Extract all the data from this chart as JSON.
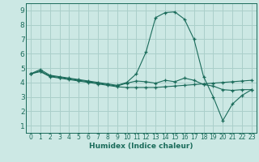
{
  "title": "",
  "xlabel": "Humidex (Indice chaleur)",
  "ylabel": "",
  "background_color": "#cce8e4",
  "grid_color": "#aacfca",
  "line_color": "#1a6b5a",
  "xlim": [
    -0.5,
    23.5
  ],
  "ylim": [
    0.5,
    9.5
  ],
  "xticks": [
    0,
    1,
    2,
    3,
    4,
    5,
    6,
    7,
    8,
    9,
    10,
    11,
    12,
    13,
    14,
    15,
    16,
    17,
    18,
    19,
    20,
    21,
    22,
    23
  ],
  "yticks": [
    1,
    2,
    3,
    4,
    5,
    6,
    7,
    8,
    9
  ],
  "curves": [
    {
      "x": [
        0,
        1,
        2,
        3,
        4,
        5,
        6,
        7,
        8,
        9,
        10,
        11,
        12,
        13,
        14,
        15,
        16,
        17,
        18,
        19,
        20,
        21,
        22,
        23
      ],
      "y": [
        4.6,
        4.9,
        4.5,
        4.4,
        4.3,
        4.2,
        4.1,
        4.0,
        3.9,
        3.8,
        4.0,
        4.6,
        6.1,
        8.5,
        8.85,
        8.9,
        8.4,
        7.0,
        4.4,
        3.0,
        1.35,
        2.5,
        3.1,
        3.5
      ]
    },
    {
      "x": [
        0,
        1,
        2,
        3,
        4,
        5,
        6,
        7,
        8,
        9,
        10,
        11,
        12,
        13,
        14,
        15,
        16,
        17,
        18,
        19,
        20,
        21,
        22,
        23
      ],
      "y": [
        4.6,
        4.8,
        4.45,
        4.35,
        4.25,
        4.15,
        4.05,
        3.95,
        3.85,
        3.75,
        3.95,
        4.1,
        4.05,
        3.95,
        4.15,
        4.05,
        4.3,
        4.15,
        3.85,
        3.75,
        3.5,
        3.45,
        3.5,
        3.5
      ]
    },
    {
      "x": [
        0,
        1,
        2,
        3,
        4,
        5,
        6,
        7,
        8,
        9,
        10,
        11,
        12,
        13,
        14,
        15,
        16,
        17,
        18,
        19,
        20,
        21,
        22,
        23
      ],
      "y": [
        4.6,
        4.75,
        4.4,
        4.3,
        4.2,
        4.1,
        4.0,
        3.9,
        3.8,
        3.7,
        3.65,
        3.65,
        3.65,
        3.65,
        3.7,
        3.75,
        3.8,
        3.85,
        3.9,
        3.95,
        4.0,
        4.05,
        4.1,
        4.15
      ]
    }
  ]
}
